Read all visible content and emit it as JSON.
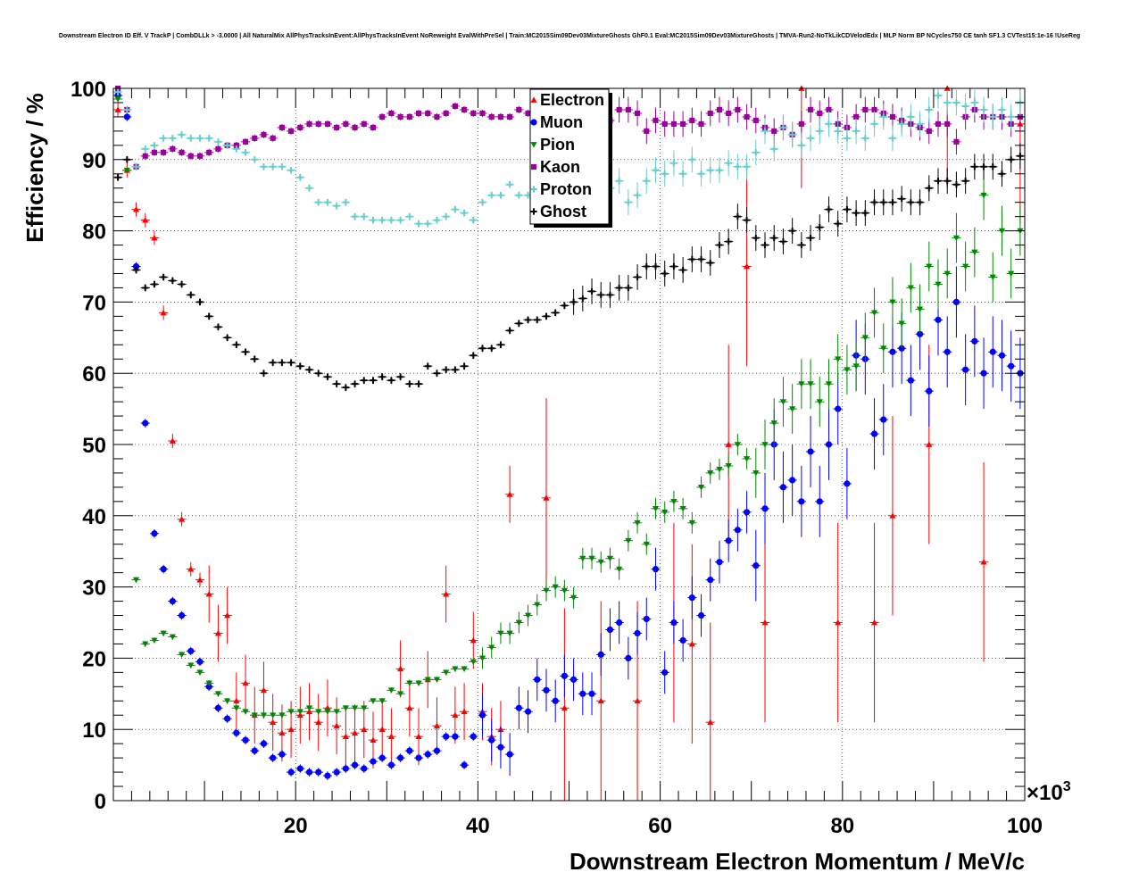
{
  "chart_data": {
    "type": "scatter",
    "title": "Downstream Electron ID Eff. V TrackP | CombDLLk > -3.0000 | All NaturalMix AllPhysTracksInEvent:AllPhysTracksInEvent NoReweight EvalWithPreSel | Train:MC2015Sim09Dev03MixtureGhosts GhF0.1 Eval:MC2015Sim09Dev03MixtureGhosts | TMVA-Run2-NoTkLikCDVelodEdx | MLP Norm BP NCycles750 CE tanh SF1.3 CVTest15:1e-16 !UseReg",
    "xlabel": "Downstream Electron Momentum / MeV/c",
    "ylabel": "Efficiency / %",
    "x_multiplier_label": "×10",
    "x_multiplier_exp": "3",
    "xlim": [
      0,
      100
    ],
    "ylim": [
      0,
      100
    ],
    "x_ticks": [
      "20",
      "40",
      "60",
      "80",
      "100"
    ],
    "y_ticks": [
      "0",
      "10",
      "20",
      "30",
      "40",
      "50",
      "60",
      "70",
      "80",
      "90",
      "100"
    ],
    "grid": true,
    "legend_position": "top-center",
    "series": [
      {
        "name": "Electron",
        "color": "#ff0000",
        "marker": "triangle-up",
        "x": [
          0.5,
          1.5,
          2.5,
          3.5,
          4.5,
          5.5,
          6.5,
          7.5,
          8.5,
          9.5,
          10.5,
          11.5,
          12.5,
          13.5,
          14.5,
          15.5,
          16.5,
          17.5,
          18.5,
          19.5,
          20.5,
          21.5,
          22.5,
          23.5,
          24.5,
          25.5,
          26.5,
          27.5,
          28.5,
          29.5,
          30.5,
          31.5,
          32.5,
          33.5,
          34.5,
          35.5,
          36.5,
          37.5,
          38.5,
          39.5,
          40.5,
          41.5,
          42.5,
          43.5,
          47.5,
          49.5,
          53.5,
          57.5,
          61.5,
          63.5,
          65.5,
          67.5,
          69.5,
          71.5,
          75.5,
          79.5,
          83.5,
          85.5,
          89.5,
          91.5,
          95.5,
          99.5
        ],
        "y": [
          97,
          88.5,
          83,
          81.5,
          79,
          68.5,
          50.5,
          39.5,
          32.5,
          31,
          29,
          23.5,
          26,
          14,
          16.5,
          12,
          15.5,
          11,
          9.5,
          10,
          12,
          12.5,
          11,
          13,
          10.5,
          9,
          9.5,
          10,
          8.5,
          10,
          9,
          18.5,
          13,
          9,
          17,
          10.5,
          29,
          12,
          12.5,
          22.5,
          12.5,
          9,
          10,
          43,
          42.5,
          13,
          14,
          14,
          25,
          22,
          11,
          50,
          75,
          25,
          100,
          25,
          25,
          40,
          50,
          100,
          33.5,
          95
        ]
      },
      {
        "name": "Muon",
        "color": "#0000ff",
        "marker": "circle",
        "x": [
          0.5,
          1.5,
          2.5,
          3.5,
          4.5,
          5.5,
          6.5,
          7.5,
          8.5,
          9.5,
          10.5,
          11.5,
          12.5,
          13.5,
          14.5,
          15.5,
          16.5,
          17.5,
          18.5,
          19.5,
          20.5,
          21.5,
          22.5,
          23.5,
          24.5,
          25.5,
          26.5,
          27.5,
          28.5,
          29.5,
          30.5,
          31.5,
          32.5,
          33.5,
          34.5,
          35.5,
          36.5,
          37.5,
          38.5,
          39.5,
          40.5,
          41.5,
          42.5,
          43.5,
          44.5,
          45.5,
          46.5,
          47.5,
          48.5,
          49.5,
          50.5,
          51.5,
          52.5,
          53.5,
          54.5,
          55.5,
          56.5,
          57.5,
          58.5,
          59.5,
          60.5,
          61.5,
          62.5,
          63.5,
          64.5,
          65.5,
          66.5,
          67.5,
          68.5,
          69.5,
          70.5,
          71.5,
          72.5,
          73.5,
          74.5,
          75.5,
          76.5,
          77.5,
          78.5,
          79.5,
          80.5,
          81.5,
          82.5,
          83.5,
          84.5,
          85.5,
          86.5,
          87.5,
          88.5,
          89.5,
          90.5,
          91.5,
          92.5,
          93.5,
          94.5,
          95.5,
          96.5,
          97.5,
          98.5,
          99.5
        ],
        "y": [
          99,
          96,
          75,
          53,
          37.5,
          32.5,
          28,
          26,
          21,
          19.5,
          16,
          13,
          11.5,
          9.5,
          8.5,
          7,
          8,
          6,
          6.5,
          4,
          4.5,
          4,
          4,
          3.5,
          4,
          4.5,
          5,
          4.5,
          5.5,
          6,
          5,
          6,
          7,
          6,
          6.5,
          7,
          9,
          9,
          5,
          9,
          12,
          8.5,
          7.5,
          6.5,
          13,
          12.5,
          17,
          15.5,
          14,
          17.5,
          17,
          15,
          15,
          20.5,
          24,
          25,
          20,
          23.5,
          25.5,
          32.5,
          18,
          25,
          22.5,
          28.5,
          26,
          31,
          33.5,
          36.5,
          38,
          40.5,
          33,
          41,
          50,
          44,
          45,
          42,
          49,
          42,
          50,
          55,
          44.5,
          62.5,
          62,
          51.5,
          53.5,
          63,
          63.5,
          59,
          65.5,
          57.5,
          67.5,
          63,
          70,
          60.5,
          64.5,
          60,
          63,
          62.5,
          61,
          60
        ]
      },
      {
        "name": "Pion",
        "color": "#008800",
        "marker": "triangle-down",
        "x": [
          0.5,
          1.5,
          2.5,
          3.5,
          4.5,
          5.5,
          6.5,
          7.5,
          8.5,
          9.5,
          10.5,
          11.5,
          12.5,
          13.5,
          14.5,
          15.5,
          16.5,
          17.5,
          18.5,
          19.5,
          20.5,
          21.5,
          22.5,
          23.5,
          24.5,
          25.5,
          26.5,
          27.5,
          28.5,
          29.5,
          30.5,
          31.5,
          32.5,
          33.5,
          34.5,
          35.5,
          36.5,
          37.5,
          38.5,
          39.5,
          40.5,
          41.5,
          42.5,
          43.5,
          44.5,
          45.5,
          46.5,
          47.5,
          48.5,
          49.5,
          50.5,
          51.5,
          52.5,
          53.5,
          54.5,
          55.5,
          56.5,
          57.5,
          58.5,
          59.5,
          60.5,
          61.5,
          62.5,
          63.5,
          64.5,
          65.5,
          66.5,
          67.5,
          68.5,
          69.5,
          70.5,
          71.5,
          72.5,
          73.5,
          74.5,
          75.5,
          76.5,
          77.5,
          78.5,
          79.5,
          80.5,
          81.5,
          82.5,
          83.5,
          84.5,
          85.5,
          86.5,
          87.5,
          88.5,
          89.5,
          90.5,
          91.5,
          92.5,
          93.5,
          94.5,
          95.5,
          96.5,
          97.5,
          98.5,
          99.5
        ],
        "y": [
          98.5,
          88.5,
          31,
          22,
          22.5,
          23.5,
          23,
          20.5,
          19,
          18,
          16.5,
          15,
          14,
          13,
          12.5,
          12,
          12,
          12,
          12,
          12.5,
          12.5,
          13,
          12.5,
          12.5,
          12.5,
          13,
          13,
          13,
          14,
          14,
          15.5,
          15,
          16.5,
          16.5,
          17,
          17,
          18,
          18.5,
          18.5,
          19.5,
          20,
          21.5,
          23.5,
          23.5,
          25,
          26,
          27.5,
          29.5,
          30,
          29.5,
          28.5,
          34,
          34,
          33.5,
          34,
          32.5,
          36.5,
          39,
          36,
          41,
          40.5,
          42,
          41,
          39,
          44,
          46,
          46.5,
          47,
          50,
          48,
          46,
          50,
          53,
          56,
          55,
          58.5,
          58.5,
          56,
          58.5,
          62,
          60.5,
          61,
          65,
          68.5,
          63.5,
          70,
          67,
          72,
          69,
          75,
          72.5,
          74,
          79,
          75,
          77,
          85,
          73.5,
          80,
          74,
          80
        ]
      },
      {
        "name": "Kaon",
        "color": "#990099",
        "marker": "square",
        "x": [
          0.5,
          1.5,
          2.5,
          3.5,
          4.5,
          5.5,
          6.5,
          7.5,
          8.5,
          9.5,
          10.5,
          11.5,
          12.5,
          13.5,
          14.5,
          15.5,
          16.5,
          17.5,
          18.5,
          19.5,
          20.5,
          21.5,
          22.5,
          23.5,
          24.5,
          25.5,
          26.5,
          27.5,
          28.5,
          29.5,
          30.5,
          31.5,
          32.5,
          33.5,
          34.5,
          35.5,
          36.5,
          37.5,
          38.5,
          39.5,
          40.5,
          41.5,
          42.5,
          43.5,
          44.5,
          45.5,
          46.5,
          47.5,
          48.5,
          49.5,
          50.5,
          51.5,
          52.5,
          53.5,
          54.5,
          55.5,
          56.5,
          57.5,
          58.5,
          59.5,
          60.5,
          61.5,
          62.5,
          63.5,
          64.5,
          65.5,
          66.5,
          67.5,
          68.5,
          69.5,
          70.5,
          71.5,
          72.5,
          73.5,
          74.5,
          75.5,
          76.5,
          77.5,
          78.5,
          79.5,
          80.5,
          81.5,
          82.5,
          83.5,
          84.5,
          85.5,
          86.5,
          87.5,
          88.5,
          89.5,
          90.5,
          91.5,
          92.5,
          93.5,
          94.5,
          95.5,
          96.5,
          97.5,
          98.5,
          99.5
        ],
        "y": [
          100,
          97,
          89,
          90.5,
          91,
          91,
          91.5,
          91,
          90.5,
          90.5,
          91,
          91.5,
          92,
          92,
          92.5,
          93,
          93.5,
          93,
          94.5,
          94,
          94.5,
          95,
          95,
          95,
          94.5,
          95,
          94.5,
          95,
          94.5,
          96,
          96.5,
          96,
          96,
          96.5,
          96.5,
          96,
          96.5,
          97.5,
          97,
          96.5,
          96.5,
          96,
          96,
          96,
          97,
          96.5,
          97,
          96.5,
          97,
          97.5,
          96,
          96,
          96.5,
          96.5,
          95.5,
          97,
          97,
          96.5,
          94,
          95.5,
          95,
          95,
          95,
          95.5,
          95,
          96.5,
          97,
          96.5,
          97,
          96,
          95.5,
          94.5,
          94,
          94.5,
          93.5,
          95,
          97,
          96.5,
          97,
          95,
          94.5,
          96,
          97,
          97,
          96.5,
          96,
          95.5,
          95,
          94.5,
          94,
          95,
          95,
          92.5,
          96,
          97,
          96,
          96,
          96,
          95,
          96
        ]
      },
      {
        "name": "Proton",
        "color": "#66cccc",
        "marker": "cross",
        "x": [
          0.5,
          1.5,
          2.5,
          3.5,
          4.5,
          5.5,
          6.5,
          7.5,
          8.5,
          9.5,
          10.5,
          11.5,
          12.5,
          13.5,
          14.5,
          15.5,
          16.5,
          17.5,
          18.5,
          19.5,
          20.5,
          21.5,
          22.5,
          23.5,
          24.5,
          25.5,
          26.5,
          27.5,
          28.5,
          29.5,
          30.5,
          31.5,
          32.5,
          33.5,
          34.5,
          35.5,
          36.5,
          37.5,
          38.5,
          39.5,
          40.5,
          41.5,
          42.5,
          43.5,
          44.5,
          45.5,
          46.5,
          47.5,
          48.5,
          49.5,
          50.5,
          51.5,
          52.5,
          53.5,
          54.5,
          55.5,
          56.5,
          57.5,
          58.5,
          59.5,
          60.5,
          61.5,
          62.5,
          63.5,
          64.5,
          65.5,
          66.5,
          67.5,
          68.5,
          69.5,
          70.5,
          71.5,
          72.5,
          73.5,
          74.5,
          75.5,
          76.5,
          77.5,
          78.5,
          79.5,
          80.5,
          81.5,
          82.5,
          83.5,
          84.5,
          85.5,
          86.5,
          87.5,
          88.5,
          89.5,
          90.5,
          91.5,
          92.5,
          93.5,
          94.5,
          95.5,
          96.5,
          97.5,
          98.5,
          99.5
        ],
        "y": [
          99.5,
          97,
          89,
          91.5,
          92,
          93,
          93,
          93.5,
          93,
          93,
          93,
          92.5,
          92,
          91.5,
          91,
          90,
          89,
          89,
          89,
          88.5,
          87.5,
          86,
          84,
          84,
          83.5,
          84,
          82,
          82,
          81.5,
          81.5,
          81.5,
          81.5,
          82,
          81,
          81,
          81.5,
          82,
          83,
          82.5,
          81.5,
          84,
          85,
          85,
          86.5,
          85,
          85,
          84,
          83,
          83,
          85,
          84,
          85.5,
          86,
          84,
          86,
          87,
          84,
          85,
          87,
          88.5,
          88,
          89.5,
          88,
          90,
          88,
          88.5,
          88.5,
          89.5,
          89,
          89,
          91,
          94,
          91.5,
          94.5,
          93.5,
          92,
          93,
          94,
          95,
          94,
          93,
          94,
          93,
          95,
          96,
          93,
          95,
          96,
          95,
          97,
          99,
          98,
          98,
          97.5,
          98,
          97,
          96,
          97,
          96,
          98
        ]
      },
      {
        "name": "Ghost",
        "color": "#000000",
        "marker": "cross",
        "x": [
          0.5,
          1.5,
          2.5,
          3.5,
          4.5,
          5.5,
          6.5,
          7.5,
          8.5,
          9.5,
          10.5,
          11.5,
          12.5,
          13.5,
          14.5,
          15.5,
          16.5,
          17.5,
          18.5,
          19.5,
          20.5,
          21.5,
          22.5,
          23.5,
          24.5,
          25.5,
          26.5,
          27.5,
          28.5,
          29.5,
          30.5,
          31.5,
          32.5,
          33.5,
          34.5,
          35.5,
          36.5,
          37.5,
          38.5,
          39.5,
          40.5,
          41.5,
          42.5,
          43.5,
          44.5,
          45.5,
          46.5,
          47.5,
          48.5,
          49.5,
          50.5,
          51.5,
          52.5,
          53.5,
          54.5,
          55.5,
          56.5,
          57.5,
          58.5,
          59.5,
          60.5,
          61.5,
          62.5,
          63.5,
          64.5,
          65.5,
          66.5,
          67.5,
          68.5,
          69.5,
          70.5,
          71.5,
          72.5,
          73.5,
          74.5,
          75.5,
          76.5,
          77.5,
          78.5,
          79.5,
          80.5,
          81.5,
          82.5,
          83.5,
          84.5,
          85.5,
          86.5,
          87.5,
          88.5,
          89.5,
          90.5,
          91.5,
          92.5,
          93.5,
          94.5,
          95.5,
          96.5,
          97.5,
          98.5,
          99.5
        ],
        "y": [
          87.5,
          90,
          74.5,
          72,
          72.5,
          73.5,
          73,
          72.5,
          71,
          70,
          68,
          66.5,
          65,
          64,
          63,
          62,
          60,
          61.5,
          61.5,
          61.5,
          61,
          60.5,
          60,
          59.5,
          58.5,
          58,
          58.5,
          59,
          59,
          59.5,
          59,
          59.5,
          58.5,
          58.5,
          61,
          60,
          60.5,
          60.5,
          61,
          62.5,
          63.5,
          63.5,
          64,
          66,
          67,
          67.5,
          67.5,
          68,
          68.5,
          69.5,
          70,
          70.5,
          71.5,
          71,
          71,
          72,
          72,
          73.5,
          75,
          75,
          74,
          75,
          74.5,
          76,
          76,
          75.5,
          78,
          78.5,
          82,
          81.5,
          79,
          78,
          79,
          78.5,
          80,
          78,
          79,
          80.5,
          83,
          81,
          83,
          82.5,
          82.5,
          84,
          84,
          84,
          84.5,
          84,
          84,
          86,
          87,
          87,
          86.5,
          87,
          89,
          89,
          89,
          88,
          90,
          90.5
        ]
      }
    ]
  }
}
